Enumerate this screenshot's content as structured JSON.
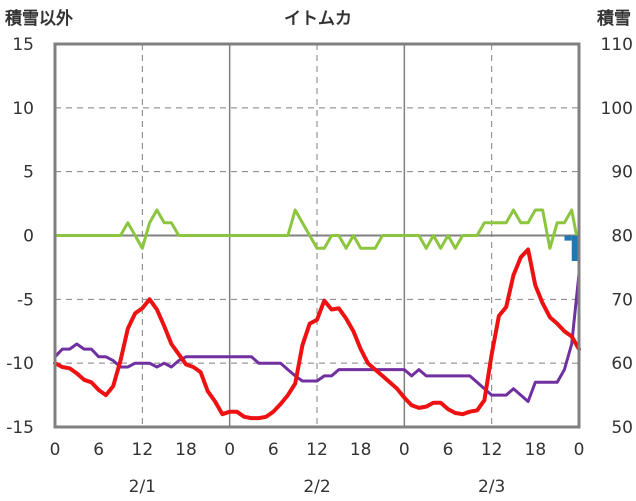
{
  "chart_data": {
    "type": "line",
    "title": "イトムカ",
    "left_axis_label": "積雪以外",
    "right_axis_label": "積雪",
    "ylim_left": [
      -15,
      15
    ],
    "ylim_right": [
      50,
      110
    ],
    "yticks_left": [
      "15",
      "10",
      "5",
      "0",
      "-5",
      "-10",
      "-15"
    ],
    "yticks_right": [
      "110",
      "100",
      "90",
      "80",
      "70",
      "60",
      "50"
    ],
    "xlim_hours": [
      0,
      72
    ],
    "xticks": [
      "0",
      "6",
      "12",
      "18",
      "0",
      "6",
      "12",
      "18",
      "0",
      "6",
      "12",
      "18",
      "0"
    ],
    "date_labels": [
      "2/1",
      "2/2",
      "2/3"
    ],
    "grid": true,
    "colors": {
      "temperature": "#ee1111",
      "wind": "#7030a0",
      "precipitation": "#8cc63f",
      "snow_bar": "#1f77b4"
    },
    "series": [
      {
        "key": "temperature",
        "axis": "left",
        "x": [
          0,
          1,
          2,
          3,
          4,
          5,
          6,
          7,
          8,
          9,
          10,
          11,
          12,
          13,
          14,
          15,
          16,
          17,
          18,
          19,
          20,
          21,
          22,
          23,
          24,
          25,
          26,
          27,
          28,
          29,
          30,
          31,
          32,
          33,
          34,
          35,
          36,
          37,
          38,
          39,
          40,
          41,
          42,
          43,
          44,
          45,
          46,
          47,
          48,
          49,
          50,
          51,
          52,
          53,
          54,
          55,
          56,
          57,
          58,
          59,
          60,
          61,
          62,
          63,
          64,
          65,
          66,
          67,
          68,
          69,
          70,
          71
        ],
        "values": [
          -10,
          -10.3,
          -10.4,
          -10.8,
          -11.3,
          -11.5,
          -12.1,
          -12.5,
          -11.8,
          -9.8,
          -7.3,
          -6.1,
          -5.7,
          -5.0,
          -5.8,
          -7.1,
          -8.5,
          -9.3,
          -10.1,
          -10.3,
          -10.7,
          -12.2,
          -13.0,
          -14.0,
          -13.8,
          -13.8,
          -14.2,
          -14.3,
          -14.3,
          -14.2,
          -13.8,
          -13.2,
          -12.5,
          -11.6,
          -8.6,
          -6.9,
          -6.6,
          -5.1,
          -5.8,
          -5.7,
          -6.5,
          -7.5,
          -8.9,
          -10.0,
          -10.5,
          -11.0,
          -11.5,
          -12.0,
          -12.7,
          -13.3,
          -13.5,
          -13.4,
          -13.1,
          -13.1,
          -13.6,
          -13.9,
          -14.0,
          -13.8,
          -13.7,
          -12.9,
          -9.3,
          -6.3,
          -5.6,
          -3.1,
          -1.7,
          -1.1,
          -3.9,
          -5.3,
          -6.4,
          -6.9,
          -7.5,
          -7.9
        ]
      },
      {
        "key": "temperature_tail",
        "axis": "left",
        "x": [
          71,
          72
        ],
        "values": [
          -7.9,
          -8.9
        ]
      },
      {
        "key": "wind",
        "axis": "left",
        "x": [
          0,
          1,
          2,
          3,
          4,
          5,
          6,
          7,
          8,
          9,
          10,
          11,
          12,
          13,
          14,
          15,
          16,
          17,
          18,
          19,
          20,
          21,
          22,
          23,
          24,
          25,
          26,
          27,
          28,
          29,
          30,
          31,
          32,
          33,
          34,
          35,
          36,
          37,
          38,
          39,
          40,
          41,
          42,
          43,
          44,
          45,
          46,
          47,
          48,
          49,
          50,
          51,
          52,
          53,
          54,
          55,
          56,
          57,
          58,
          59,
          60,
          61,
          62,
          63,
          64,
          65,
          66,
          67,
          68,
          69,
          70,
          71,
          72
        ],
        "values": [
          -9.5,
          -8.9,
          -8.9,
          -8.5,
          -8.9,
          -8.9,
          -9.5,
          -9.5,
          -9.8,
          -10.3,
          -10.3,
          -10.0,
          -10.0,
          -10.0,
          -10.3,
          -10.0,
          -10.3,
          -9.8,
          -9.5,
          -9.5,
          -9.5,
          -9.5,
          -9.5,
          -9.5,
          -9.5,
          -9.5,
          -9.5,
          -9.5,
          -10.0,
          -10.0,
          -10.0,
          -10.0,
          -10.5,
          -11.0,
          -11.4,
          -11.4,
          -11.4,
          -11.0,
          -11.0,
          -10.5,
          -10.5,
          -10.5,
          -10.5,
          -10.5,
          -10.5,
          -10.5,
          -10.5,
          -10.5,
          -10.5,
          -11.0,
          -10.5,
          -11.0,
          -11.0,
          -11.0,
          -11.0,
          -11.0,
          -11.0,
          -11.0,
          -11.5,
          -12.0,
          -12.5,
          -12.5,
          -12.5,
          -12.0,
          -12.5,
          -13.0,
          -11.5,
          -11.5,
          -11.5,
          -11.5,
          -10.5,
          -8.5,
          -3.0
        ]
      },
      {
        "key": "precipitation",
        "axis": "left",
        "x": [
          0,
          1,
          2,
          3,
          4,
          5,
          6,
          7,
          8,
          9,
          10,
          11,
          12,
          13,
          14,
          15,
          16,
          17,
          18,
          19,
          20,
          21,
          22,
          23,
          24,
          25,
          26,
          27,
          28,
          29,
          30,
          31,
          32,
          33,
          34,
          35,
          36,
          37,
          38,
          39,
          40,
          41,
          42,
          43,
          44,
          45,
          46,
          47,
          48,
          49,
          50,
          51,
          52,
          53,
          54,
          55,
          56,
          57,
          58,
          59,
          60,
          61,
          62,
          63,
          64,
          65,
          66,
          67,
          68,
          69,
          70,
          71,
          72
        ],
        "values": [
          0,
          0,
          0,
          0,
          0,
          0,
          0,
          0,
          0,
          0,
          1,
          0,
          -1,
          1,
          2,
          1,
          1,
          0,
          0,
          0,
          0,
          0,
          0,
          0,
          0,
          0,
          0,
          0,
          0,
          0,
          0,
          0,
          0,
          2,
          1,
          0,
          -1,
          -1,
          0,
          0,
          -1,
          0,
          -1,
          -1,
          -1,
          0,
          0,
          0,
          0,
          0,
          0,
          -1,
          0,
          -1,
          0,
          -1,
          0,
          0,
          0,
          1,
          1,
          1,
          1,
          2,
          1,
          1,
          2,
          2,
          -1,
          1,
          1,
          2,
          -1
        ]
      }
    ],
    "snow_bars": [
      {
        "x": 71,
        "value_right": 79.2
      },
      {
        "x": 72,
        "value_right": 76.0
      }
    ]
  }
}
